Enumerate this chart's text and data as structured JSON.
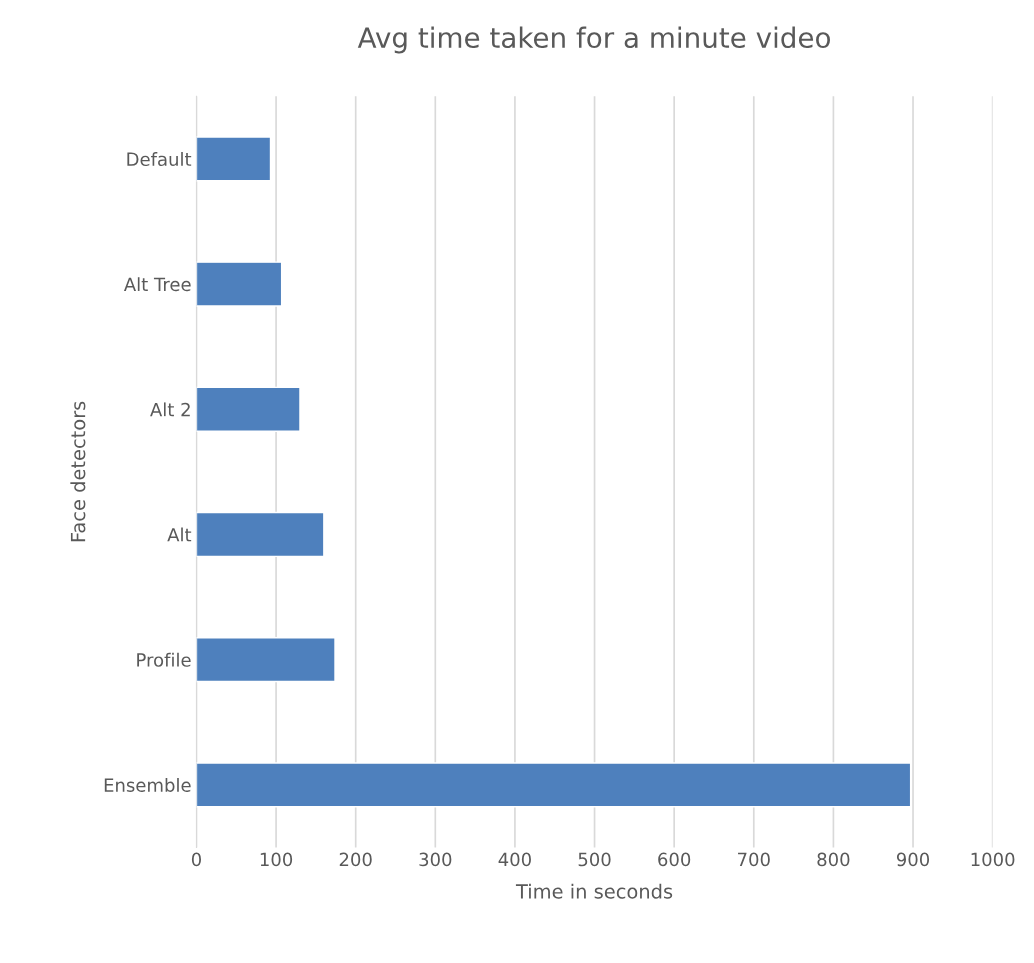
{
  "chart_data": {
    "type": "bar",
    "orientation": "horizontal",
    "title": "Avg time taken for a minute video",
    "xlabel": "Time in seconds",
    "ylabel": "Face detectors",
    "categories": [
      "Default",
      "Alt Tree",
      "Alt 2",
      "Alt",
      "Profile",
      "Ensemble"
    ],
    "values": [
      93,
      107,
      130,
      160,
      174,
      897
    ],
    "color": "#4e80bd",
    "xlim": [
      0,
      1000
    ],
    "xticks": [
      0,
      100,
      200,
      300,
      400,
      500,
      600,
      700,
      800,
      900,
      1000
    ],
    "grid": "x"
  }
}
